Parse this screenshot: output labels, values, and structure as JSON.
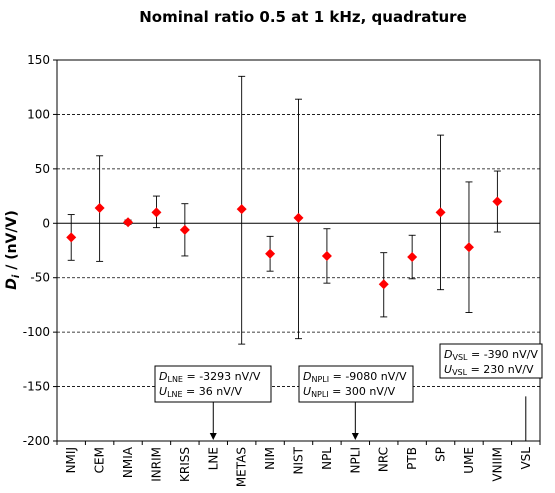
{
  "chart_data": {
    "type": "scatter",
    "title": "Nominal ratio 0.5 at 1 kHz, quadrature",
    "ylabel_main": "D",
    "ylabel_sub": "i",
    "ylabel_rest": " / (nV/V)",
    "ylim": [
      -200,
      150
    ],
    "yticks": [
      150,
      100,
      50,
      0,
      -50,
      -100,
      -150,
      -200
    ],
    "categories": [
      "NMIJ",
      "CEM",
      "NMIA",
      "INRIM",
      "KRISS",
      "LNE",
      "METAS",
      "NIM",
      "NIST",
      "NPL",
      "NPLI",
      "NRC",
      "PTB",
      "SP",
      "UME",
      "VNIIM",
      "VSL"
    ],
    "values": [
      -13,
      14,
      1,
      10,
      -6,
      null,
      13,
      -28,
      5,
      -30,
      null,
      -56,
      -31,
      10,
      -22,
      20,
      null
    ],
    "error_low": [
      -34,
      -35,
      -1,
      -4,
      -30,
      null,
      -111,
      -44,
      -106,
      -55,
      null,
      -86,
      -51,
      -61,
      -82,
      -8,
      null
    ],
    "error_high": [
      8,
      62,
      3,
      25,
      18,
      null,
      135,
      -12,
      114,
      -5,
      null,
      -27,
      -11,
      81,
      38,
      48,
      null
    ],
    "marker_color": "#ff0000",
    "grid": "dashed horizontal",
    "annotations": [
      {
        "category": "LNE",
        "d_sub": "LNE",
        "d_value": " = -3293 nV/V",
        "u_sub": "LNE",
        "u_value": " = 36 nV/V"
      },
      {
        "category": "NPLI",
        "d_sub": "NPLI",
        "d_value": " = -9080 nV/V",
        "u_sub": "NPLI",
        "u_value": " = 300 nV/V"
      },
      {
        "category": "VSL",
        "d_sub": "VSL",
        "d_value": " = -390 nV/V",
        "u_sub": "VSL",
        "u_value": " = 230 nV/V"
      }
    ]
  }
}
